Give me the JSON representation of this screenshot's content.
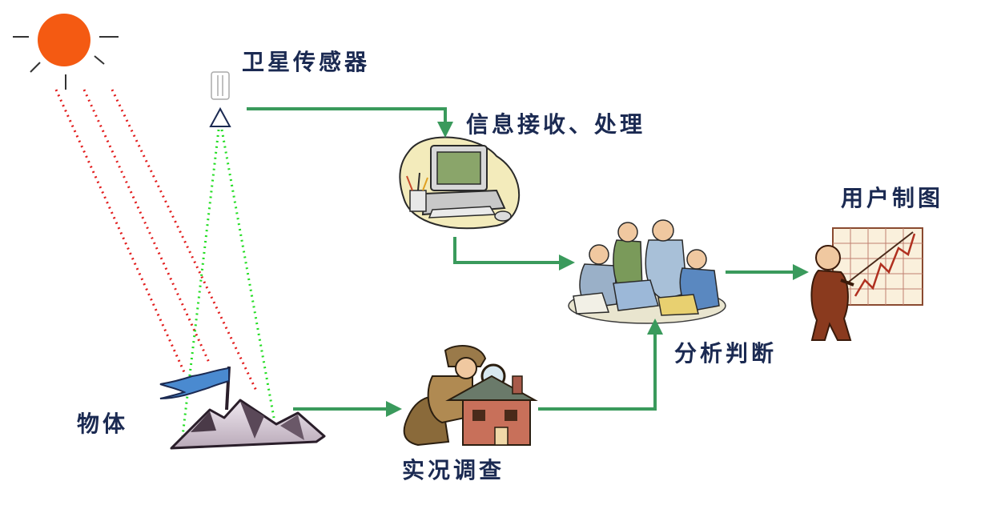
{
  "labels": {
    "satellite_sensor": "卫星传感器",
    "info_receive": "信息接收、处理",
    "user_mapping": "用户制图",
    "analysis": "分析判断",
    "object": "物体",
    "field_survey": "实况调查"
  },
  "colors": {
    "arrow": "#3a9a5c",
    "sun": "#f45a12",
    "solar_ray": "#e21d1d",
    "sensor_view": "#22dd22",
    "text": "#1b2a52"
  },
  "icons": {
    "sun": "sun-icon",
    "satellite": "satellite-sensor-icon",
    "computer": "computer-icon",
    "team": "analysts-group-icon",
    "presenter": "chart-presenter-icon",
    "mountain": "mountain-flag-icon",
    "detective": "detective-house-icon"
  }
}
